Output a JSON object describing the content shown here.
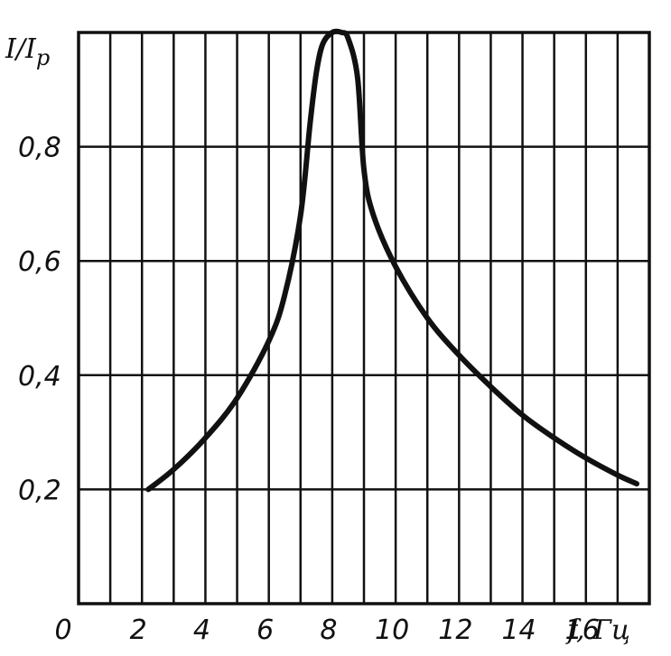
{
  "chart_data": {
    "type": "line",
    "ylabel_main": "I/I",
    "ylabel_sub": "р",
    "xlabel": "f, Гц",
    "xlim": [
      0,
      18
    ],
    "ylim": [
      0,
      1.0
    ],
    "x_ticks": [
      0,
      2,
      4,
      6,
      8,
      10,
      12,
      14,
      16
    ],
    "x_tick_labels": [
      "0",
      "2",
      "4",
      "6",
      "8",
      "10",
      "12",
      "14",
      "16"
    ],
    "y_ticks": [
      0.2,
      0.4,
      0.6,
      0.8
    ],
    "y_tick_labels": [
      "0,2",
      "0,4",
      "0,6",
      "0,8"
    ],
    "grid": true,
    "colors": {
      "line": "#111111",
      "grid": "#111111",
      "background": "#ffffff"
    },
    "series": [
      {
        "x": [
          2.2,
          3.0,
          4.0,
          5.0,
          6.0,
          6.5,
          7.0,
          7.3,
          7.5,
          7.7,
          8.0,
          8.3,
          8.5,
          8.8,
          9.0,
          9.3,
          10.0,
          11.0,
          12.0,
          13.0,
          14.0,
          15.0,
          16.0,
          17.0,
          17.6
        ],
        "y": [
          0.2,
          0.235,
          0.29,
          0.36,
          0.46,
          0.54,
          0.68,
          0.84,
          0.93,
          0.98,
          1.0,
          1.0,
          0.99,
          0.92,
          0.76,
          0.68,
          0.59,
          0.5,
          0.435,
          0.38,
          0.33,
          0.29,
          0.255,
          0.225,
          0.21
        ]
      }
    ]
  }
}
